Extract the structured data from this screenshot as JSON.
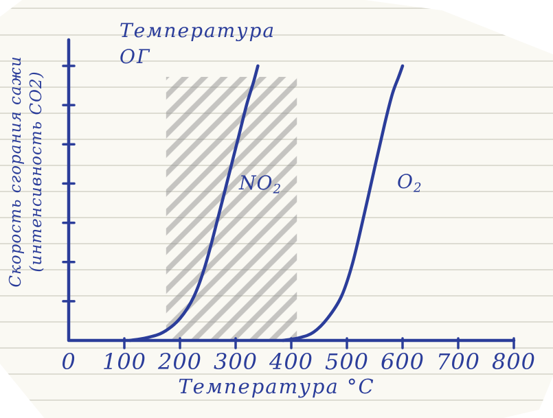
{
  "colors": {
    "ink": "#2b3d9a",
    "pencil": "#8f8f8f",
    "paper": "#faf9f3"
  },
  "labels": {
    "top_line1": "Температура",
    "top_line2": "ОГ",
    "y_axis_line1": "Скорость сгорания сажи",
    "y_axis_line2": "(интенсивность CO2)",
    "x_axis": "Температура °C"
  },
  "chart_data": {
    "type": "line",
    "title": "Температура ОГ",
    "xlabel": "Температура °C",
    "ylabel": "Скорость сгорания сажи (интенсивность CO2)",
    "xlim": [
      0,
      800
    ],
    "ylim": [
      0,
      1
    ],
    "x_ticks": [
      0,
      100,
      200,
      300,
      400,
      500,
      600,
      700,
      800
    ],
    "y_tick_count": 7,
    "grid": false,
    "legend_position": "inline",
    "series": [
      {
        "name": "NO2",
        "label_main": "NO",
        "label_sub": "2",
        "x": [
          110,
          140,
          170,
          200,
          225,
          245,
          265,
          285,
          305,
          320,
          332,
          340
        ],
        "y": [
          0,
          0.01,
          0.03,
          0.08,
          0.16,
          0.27,
          0.42,
          0.58,
          0.74,
          0.86,
          0.94,
          1.0
        ]
      },
      {
        "name": "O2",
        "label_main": "O",
        "label_sub": "2",
        "x": [
          385,
          415,
          440,
          465,
          490,
          510,
          530,
          550,
          568,
          582,
          593,
          600
        ],
        "y": [
          0,
          0.01,
          0.03,
          0.08,
          0.16,
          0.28,
          0.45,
          0.63,
          0.79,
          0.9,
          0.96,
          1.0
        ]
      }
    ],
    "hatch_region": {
      "x_start": 175,
      "x_end": 410,
      "y_start": 0,
      "y_end": 0.96
    }
  }
}
